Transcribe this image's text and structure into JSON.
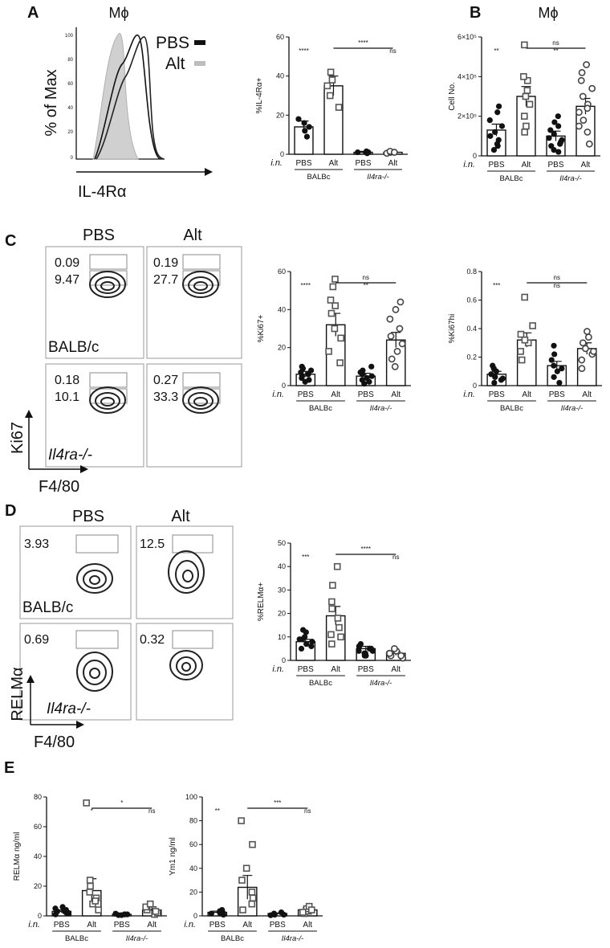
{
  "panels": {
    "A": {
      "letter": "A",
      "title": "Mϕ",
      "flow_y_label": "% of Max",
      "flow_x_label": "IL-4Rα",
      "flow_ticks": [
        "100",
        "80",
        "60",
        "40",
        "20",
        "0"
      ],
      "legend": [
        {
          "label": "PBS",
          "color": "#111111"
        },
        {
          "label": "Alt",
          "color": "#bfbfbf"
        }
      ]
    },
    "B": {
      "letter": "B",
      "title": "Mϕ"
    },
    "C": {
      "letter": "C",
      "col_labels": [
        "PBS",
        "Alt"
      ],
      "row_labels": [
        "BALB/c",
        "Il4ra-/-"
      ],
      "quad_values": [
        [
          "0.09",
          "9.47",
          "0.19",
          "27.7"
        ],
        [
          "0.18",
          "10.1",
          "0.27",
          "33.3"
        ]
      ],
      "y_axis": "Ki67",
      "x_axis": "F4/80"
    },
    "D": {
      "letter": "D",
      "col_labels": [
        "PBS",
        "Alt"
      ],
      "row_labels": [
        "BALB/c",
        "Il4ra-/-"
      ],
      "quad_values": [
        [
          "3.93",
          "12.5"
        ],
        [
          "0.69",
          "0.32"
        ]
      ],
      "y_axis": "RELMα",
      "x_axis": "F4/80"
    },
    "E": {
      "letter": "E"
    }
  },
  "common": {
    "in_label": "i.n.",
    "group_labels": [
      "BALBc",
      "Il4ra-/-"
    ],
    "bar_categories": [
      "PBS",
      "Alt",
      "PBS",
      "Alt"
    ]
  },
  "chart_data": [
    {
      "id": "A",
      "type": "bar",
      "ylabel": "%IL-4Rα+",
      "ylim": [
        0,
        60
      ],
      "yticks": [
        0,
        20,
        40,
        60
      ],
      "categories": [
        "PBS",
        "Alt",
        "PBS",
        "Alt"
      ],
      "groups": [
        "BALBc",
        "Il4ra-/-"
      ],
      "values": [
        14,
        35,
        1,
        1
      ],
      "errors": [
        3,
        5,
        0.5,
        0.5
      ],
      "points": [
        [
          9,
          12,
          14,
          16,
          18
        ],
        [
          24,
          30,
          35,
          38,
          42
        ],
        [
          0.5,
          1,
          1,
          1.5,
          1
        ],
        [
          0.5,
          1,
          1.5,
          1
        ]
      ],
      "markers": [
        "circle",
        "square",
        "circle",
        "circle"
      ],
      "annotations": [
        {
          "text": "****",
          "over": 0
        },
        {
          "text": "****",
          "span": [
            1,
            3
          ]
        },
        {
          "text": "ns",
          "over": 3
        }
      ]
    },
    {
      "id": "B",
      "type": "bar",
      "ylabel": "Cell No.",
      "ylim": [
        0,
        600000
      ],
      "yticks": [
        0,
        200000,
        400000,
        600000
      ],
      "yticklabels": [
        "0",
        "2×10⁵",
        "4×10⁵",
        "6×10⁵"
      ],
      "categories": [
        "PBS",
        "Alt",
        "PBS",
        "Alt"
      ],
      "groups": [
        "BALBc",
        "Il4ra-/-"
      ],
      "values": [
        130000,
        300000,
        100000,
        250000
      ],
      "errors": [
        30000,
        50000,
        25000,
        40000
      ],
      "points": [
        [
          50000,
          80000,
          100000,
          120000,
          150000,
          180000,
          220000,
          250000,
          30000,
          60000
        ],
        [
          120000,
          200000,
          260000,
          300000,
          330000,
          380000,
          400000,
          560000,
          150000
        ],
        [
          30000,
          50000,
          70000,
          90000,
          110000,
          130000,
          150000,
          170000,
          200000,
          60000,
          20000,
          80000
        ],
        [
          60000,
          120000,
          180000,
          220000,
          260000,
          300000,
          340000,
          380000,
          420000,
          150000,
          240000,
          460000
        ]
      ],
      "markers": [
        "circle",
        "square",
        "circle",
        "circle"
      ],
      "annotations": [
        {
          "text": "**",
          "over": 0
        },
        {
          "text": "ns",
          "span": [
            1,
            3
          ]
        },
        {
          "text": "**",
          "over": 2
        }
      ]
    },
    {
      "id": "C1",
      "type": "bar",
      "ylabel": "%Ki67+",
      "ylim": [
        0,
        60
      ],
      "yticks": [
        0,
        20,
        40,
        60
      ],
      "categories": [
        "PBS",
        "Alt",
        "PBS",
        "Alt"
      ],
      "groups": [
        "BALBc",
        "Il4ra-/-"
      ],
      "values": [
        6,
        32,
        5,
        24
      ],
      "errors": [
        1.5,
        6,
        1.5,
        4
      ],
      "points": [
        [
          2,
          3,
          4,
          5,
          6,
          7,
          8,
          9,
          10
        ],
        [
          12,
          18,
          25,
          30,
          38,
          42,
          45,
          52,
          56
        ],
        [
          1,
          2,
          3,
          4,
          5,
          6,
          7,
          8,
          10
        ],
        [
          10,
          14,
          18,
          22,
          26,
          30,
          35,
          40,
          44
        ]
      ],
      "markers": [
        "circle",
        "square",
        "circle",
        "circle"
      ],
      "annotations": [
        {
          "text": "****",
          "over": 0
        },
        {
          "text": "ns",
          "span": [
            1,
            3
          ]
        },
        {
          "text": "**",
          "over": 2
        }
      ]
    },
    {
      "id": "C2",
      "type": "bar",
      "ylabel": "%Ki67hi",
      "ylim": [
        0,
        0.8
      ],
      "yticks": [
        0,
        0.2,
        0.4,
        0.6,
        0.8
      ],
      "categories": [
        "PBS",
        "Alt",
        "PBS",
        "Alt"
      ],
      "groups": [
        "BALBc",
        "Il4ra-/-"
      ],
      "values": [
        0.08,
        0.32,
        0.14,
        0.26
      ],
      "errors": [
        0.02,
        0.05,
        0.03,
        0.04
      ],
      "points": [
        [
          0.02,
          0.04,
          0.06,
          0.08,
          0.1,
          0.12,
          0.14,
          0.05
        ],
        [
          0.18,
          0.24,
          0.3,
          0.32,
          0.36,
          0.42,
          0.62
        ],
        [
          0.02,
          0.06,
          0.1,
          0.14,
          0.18,
          0.22,
          0.28,
          0.12
        ],
        [
          0.12,
          0.18,
          0.22,
          0.26,
          0.3,
          0.34,
          0.38,
          0.24
        ]
      ],
      "markers": [
        "circle",
        "square",
        "circle",
        "circle"
      ],
      "annotations": [
        {
          "text": "***",
          "over": 0
        },
        {
          "text": "ns",
          "span": [
            1,
            3
          ]
        },
        {
          "text": "ns",
          "over": 2
        }
      ]
    },
    {
      "id": "D",
      "type": "bar",
      "ylabel": "%RELMα+",
      "ylim": [
        0,
        50
      ],
      "yticks": [
        0,
        10,
        20,
        30,
        40,
        50
      ],
      "categories": [
        "PBS",
        "Alt",
        "PBS",
        "Alt"
      ],
      "groups": [
        "BALBc",
        "Il4ra-/-"
      ],
      "values": [
        8,
        19,
        5,
        3
      ],
      "errors": [
        1,
        4,
        1,
        0.8
      ],
      "points": [
        [
          5,
          6,
          7,
          8,
          9,
          10,
          12,
          7,
          9,
          13
        ],
        [
          7,
          10,
          14,
          18,
          22,
          25,
          32,
          40,
          11
        ],
        [
          2,
          3,
          4,
          5,
          6,
          7,
          3,
          5,
          4,
          6,
          2
        ],
        [
          1,
          2,
          3,
          4,
          5,
          2,
          3
        ]
      ],
      "markers": [
        "circle",
        "square",
        "circle",
        "circle"
      ],
      "annotations": [
        {
          "text": "***",
          "over": 0
        },
        {
          "text": "****",
          "span": [
            1,
            3
          ]
        },
        {
          "text": "ns",
          "over": 3
        }
      ]
    },
    {
      "id": "E1",
      "type": "bar",
      "ylabel": "RELMα ng/ml",
      "ylim": [
        0,
        80
      ],
      "yticks": [
        0,
        20,
        40,
        60,
        80
      ],
      "categories": [
        "PBS",
        "Alt",
        "PBS",
        "Alt"
      ],
      "groups": [
        "BALBc",
        "Il4ra-/-"
      ],
      "values": [
        3,
        17,
        1,
        4
      ],
      "errors": [
        1,
        8,
        0.5,
        2
      ],
      "points": [
        [
          1,
          2,
          3,
          4,
          5,
          6,
          2,
          3
        ],
        [
          4,
          8,
          12,
          16,
          20,
          24,
          76,
          10
        ],
        [
          0.5,
          1,
          1.5,
          1,
          0.5,
          1
        ],
        [
          1,
          2,
          4,
          6,
          8,
          3
        ]
      ],
      "markers": [
        "circle",
        "square",
        "circle",
        "square"
      ],
      "annotations": [
        {
          "text": "*",
          "over": 1
        },
        {
          "text": "*",
          "span": [
            1,
            3
          ]
        },
        {
          "text": "ns",
          "over": 3
        }
      ]
    },
    {
      "id": "E2",
      "type": "bar",
      "ylabel": "Ym1 ng/ml",
      "ylim": [
        0,
        100
      ],
      "yticks": [
        0,
        20,
        40,
        60,
        80,
        100
      ],
      "categories": [
        "PBS",
        "Alt",
        "PBS",
        "Alt"
      ],
      "groups": [
        "BALBc",
        "Il4ra-/-"
      ],
      "values": [
        3,
        24,
        2,
        5
      ],
      "errors": [
        1,
        10,
        0.5,
        2
      ],
      "points": [
        [
          1,
          2,
          3,
          4,
          5,
          2
        ],
        [
          5,
          10,
          15,
          20,
          40,
          60,
          80,
          30
        ],
        [
          0.5,
          1,
          2,
          3,
          1
        ],
        [
          2,
          4,
          6,
          8,
          5,
          3
        ]
      ],
      "markers": [
        "circle",
        "square",
        "circle",
        "square"
      ],
      "annotations": [
        {
          "text": "**",
          "over": 0
        },
        {
          "text": "***",
          "span": [
            1,
            3
          ]
        },
        {
          "text": "ns",
          "over": 3
        }
      ]
    }
  ]
}
